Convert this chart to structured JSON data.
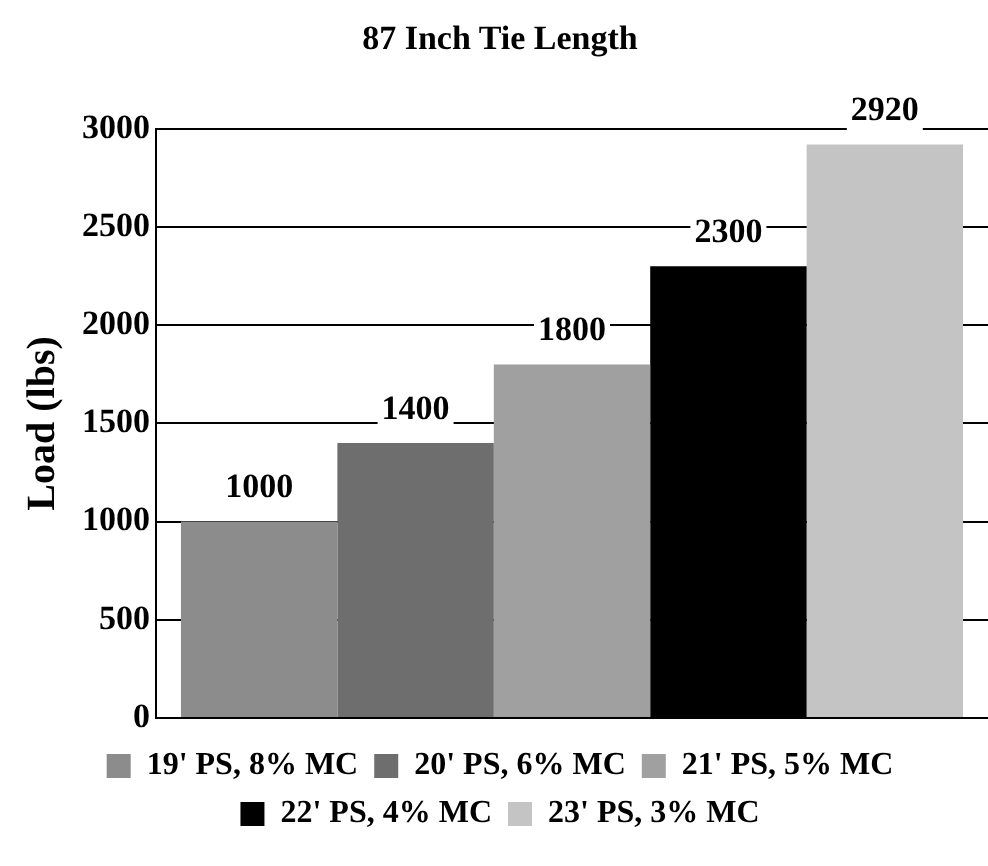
{
  "chart_data": {
    "type": "bar",
    "title": "87 Inch Tie Length",
    "ylabel": "Load (lbs)",
    "categories": [
      null
    ],
    "series": [
      {
        "name": "19' PS, 8% MC",
        "color": "#8c8c8c",
        "values": [
          1000
        ]
      },
      {
        "name": "20' PS, 6% MC",
        "color": "#6e6e6e",
        "values": [
          1400
        ]
      },
      {
        "name": "21' PS, 5% MC",
        "color": "#a0a0a0",
        "values": [
          1800
        ]
      },
      {
        "name": "22' PS, 4% MC",
        "color": "#000000",
        "values": [
          2300
        ]
      },
      {
        "name": "23' PS, 3% MC",
        "color": "#c4c4c4",
        "values": [
          2920
        ]
      }
    ],
    "ylim": [
      0,
      3000
    ],
    "yticks": [
      0,
      500,
      1000,
      1500,
      2000,
      2500,
      3000
    ],
    "grid": "y",
    "legend": "bottom",
    "data_labels": true
  }
}
